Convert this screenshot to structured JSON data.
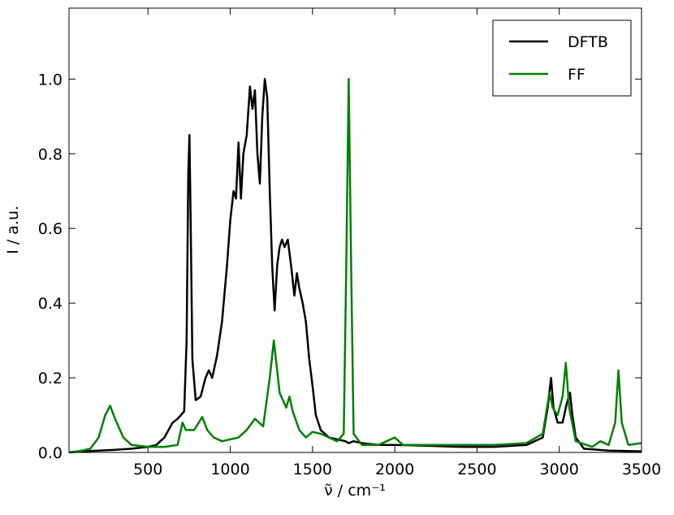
{
  "chart_data": {
    "type": "line",
    "xlabel": "ν̃ / cm⁻¹",
    "ylabel": "I / a.u.",
    "xlim": [
      20,
      3500
    ],
    "ylim": [
      0,
      1.19
    ],
    "xticks": [
      500,
      1000,
      1500,
      2000,
      2500,
      3000,
      3500
    ],
    "yticks": [
      {
        "value": 0,
        "label": "0.0"
      },
      0.2,
      0.4,
      0.6,
      0.8,
      {
        "value": 1,
        "label": "1.0"
      }
    ],
    "legend": "upper right",
    "series": [
      {
        "name": "DFTB",
        "color": "#000000",
        "x": [
          20,
          100,
          200,
          300,
          400,
          500,
          550,
          600,
          650,
          680,
          700,
          720,
          735,
          745,
          752,
          760,
          770,
          790,
          820,
          850,
          870,
          890,
          920,
          950,
          980,
          1000,
          1020,
          1035,
          1050,
          1065,
          1080,
          1100,
          1120,
          1135,
          1150,
          1165,
          1180,
          1195,
          1210,
          1225,
          1240,
          1255,
          1270,
          1285,
          1300,
          1315,
          1330,
          1350,
          1370,
          1390,
          1405,
          1420,
          1440,
          1460,
          1480,
          1500,
          1520,
          1550,
          1600,
          1650,
          1700,
          1720,
          1750,
          1800,
          1900,
          2000,
          2200,
          2400,
          2600,
          2800,
          2900,
          2930,
          2950,
          2965,
          2990,
          3020,
          3045,
          3065,
          3080,
          3100,
          3150,
          3300,
          3500
        ],
        "values": [
          0.0,
          0.003,
          0.005,
          0.007,
          0.01,
          0.015,
          0.02,
          0.04,
          0.08,
          0.09,
          0.1,
          0.11,
          0.3,
          0.75,
          0.85,
          0.6,
          0.25,
          0.14,
          0.15,
          0.2,
          0.22,
          0.2,
          0.26,
          0.35,
          0.5,
          0.62,
          0.7,
          0.68,
          0.83,
          0.68,
          0.8,
          0.85,
          0.98,
          0.92,
          0.97,
          0.8,
          0.72,
          0.9,
          1.0,
          0.95,
          0.7,
          0.5,
          0.38,
          0.5,
          0.55,
          0.57,
          0.55,
          0.57,
          0.5,
          0.42,
          0.48,
          0.44,
          0.4,
          0.35,
          0.25,
          0.18,
          0.1,
          0.06,
          0.04,
          0.035,
          0.03,
          0.025,
          0.03,
          0.025,
          0.02,
          0.02,
          0.018,
          0.015,
          0.015,
          0.02,
          0.04,
          0.12,
          0.2,
          0.12,
          0.08,
          0.08,
          0.13,
          0.16,
          0.1,
          0.04,
          0.01,
          0.005,
          0.003
        ]
      },
      {
        "name": "FF",
        "color": "#008000",
        "x": [
          20,
          100,
          150,
          200,
          240,
          270,
          300,
          350,
          400,
          500,
          600,
          680,
          710,
          730,
          780,
          830,
          860,
          900,
          950,
          1000,
          1050,
          1100,
          1150,
          1200,
          1240,
          1265,
          1285,
          1300,
          1320,
          1340,
          1360,
          1380,
          1420,
          1460,
          1500,
          1550,
          1600,
          1650,
          1690,
          1705,
          1720,
          1735,
          1750,
          1800,
          1900,
          2000,
          2050,
          2200,
          2400,
          2600,
          2800,
          2900,
          2940,
          2960,
          2990,
          3020,
          3040,
          3060,
          3100,
          3200,
          3250,
          3300,
          3340,
          3360,
          3380,
          3420,
          3500
        ],
        "values": [
          0.0,
          0.005,
          0.01,
          0.04,
          0.1,
          0.125,
          0.09,
          0.04,
          0.02,
          0.015,
          0.015,
          0.02,
          0.08,
          0.06,
          0.06,
          0.095,
          0.06,
          0.04,
          0.03,
          0.035,
          0.04,
          0.06,
          0.09,
          0.07,
          0.2,
          0.3,
          0.22,
          0.16,
          0.14,
          0.12,
          0.15,
          0.11,
          0.06,
          0.04,
          0.055,
          0.05,
          0.04,
          0.03,
          0.05,
          0.5,
          1.0,
          0.5,
          0.05,
          0.02,
          0.02,
          0.04,
          0.02,
          0.02,
          0.02,
          0.02,
          0.025,
          0.05,
          0.16,
          0.12,
          0.1,
          0.15,
          0.24,
          0.12,
          0.03,
          0.015,
          0.03,
          0.02,
          0.08,
          0.22,
          0.08,
          0.02,
          0.025
        ]
      }
    ]
  }
}
